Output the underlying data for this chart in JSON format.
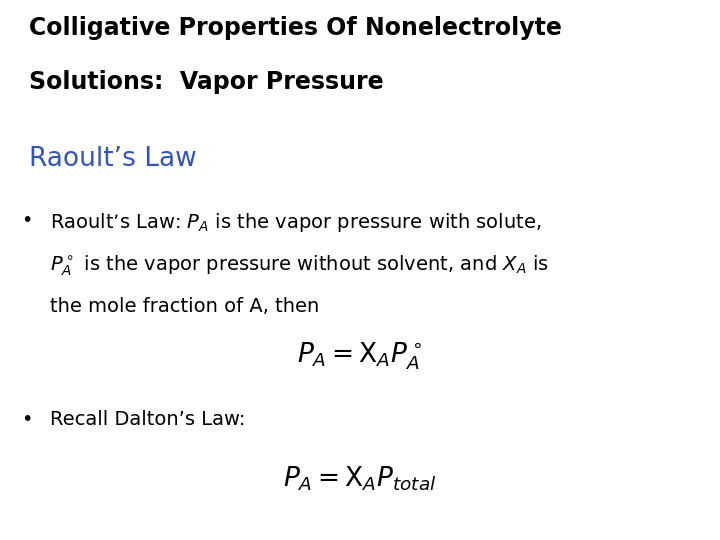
{
  "background_color": "#ffffff",
  "title_line1": "Colligative Properties Of Nonelectrolyte",
  "title_line2": "Solutions:  Vapor Pressure",
  "title_color": "#000000",
  "title_fontsize": 17,
  "section_header": "Raoult’s Law",
  "section_color": "#3355bb",
  "section_fontsize": 19,
  "bullet1_line1": "Raoult’s Law: $P_A$ is the vapor pressure with solute,",
  "bullet1_line2": "$P_A^\\circ$ is the vapor pressure without solvent, and $X_A$ is",
  "bullet1_line3": "the mole fraction of A, then",
  "formula1": "$P_A = \\mathrm{X}_A P_A^\\circ$",
  "bullet2_text": "Recall Dalton’s Law:",
  "formula2": "$P_A = \\mathrm{X}_A P_{total}$",
  "body_fontsize": 14,
  "formula_fontsize": 19,
  "bullet_color": "#000000"
}
